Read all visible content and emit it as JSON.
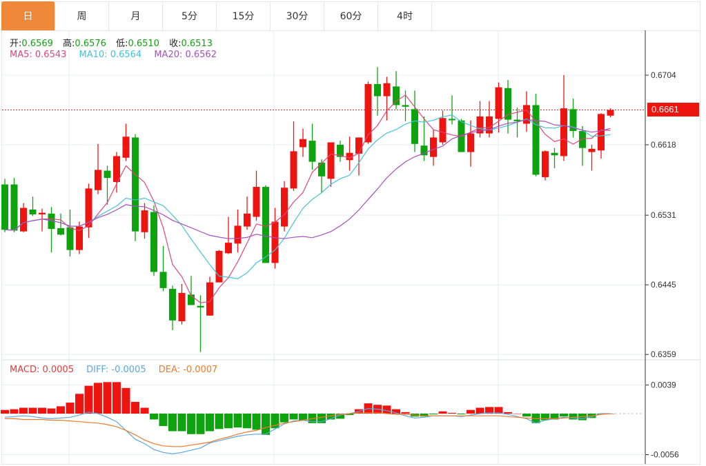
{
  "tabs": [
    {
      "label": "日",
      "active": true
    },
    {
      "label": "周"
    },
    {
      "label": "月"
    },
    {
      "label": "5分"
    },
    {
      "label": "15分"
    },
    {
      "label": "30分"
    },
    {
      "label": "60分"
    },
    {
      "label": "4时"
    }
  ],
  "ohlc_legend": {
    "open_label": "开:",
    "open": "0.6569",
    "high_label": "高:",
    "high": "0.6576",
    "low_label": "低:",
    "low": "0.6510",
    "close_label": "收:",
    "close": "0.6513"
  },
  "ma_legend": {
    "ma5": "MA5: 0.6543",
    "ma10": "MA10: 0.6564",
    "ma20": "MA20: 0.6562"
  },
  "macd_legend": {
    "macd": "MACD: 0.0005",
    "diff": "DIFF: -0.0005",
    "dea": "DEA: -0.0007"
  },
  "colors": {
    "up": "#ee1510",
    "down": "#0ea30e",
    "ma5": "#e0457b",
    "ma10": "#45c1d6",
    "ma20": "#a64dbf",
    "diff": "#5aa6e0",
    "dea": "#ee7a2a",
    "accent": "#f0883a"
  },
  "chart_data": [
    {
      "type": "candlestick",
      "title": "",
      "price_ticks": [
        "0.6704",
        "0.6618",
        "0.6531",
        "0.6445",
        "0.6359"
      ],
      "ylim": [
        0.6359,
        0.6704
      ],
      "current_price": "0.6661",
      "candles_ohlc_order": "open,close,high,low",
      "candles": [
        [
          0.6569,
          0.6513,
          0.6576,
          0.651
        ],
        [
          0.6569,
          0.6512,
          0.6577,
          0.651
        ],
        [
          0.6511,
          0.654,
          0.6546,
          0.651
        ],
        [
          0.6538,
          0.6532,
          0.6554,
          0.653
        ],
        [
          0.6532,
          0.6534,
          0.6539,
          0.6511
        ],
        [
          0.6533,
          0.6514,
          0.6541,
          0.6485
        ],
        [
          0.6515,
          0.6507,
          0.6533,
          0.6506
        ],
        [
          0.6516,
          0.6488,
          0.6538,
          0.648
        ],
        [
          0.6488,
          0.6517,
          0.6523,
          0.6483
        ],
        [
          0.6516,
          0.6564,
          0.657,
          0.6503
        ],
        [
          0.6562,
          0.6587,
          0.6619,
          0.6557
        ],
        [
          0.6586,
          0.6577,
          0.6592,
          0.6544
        ],
        [
          0.6572,
          0.6604,
          0.6609,
          0.6559
        ],
        [
          0.6602,
          0.6628,
          0.6644,
          0.6598
        ],
        [
          0.6627,
          0.6511,
          0.6631,
          0.6499
        ],
        [
          0.651,
          0.6537,
          0.6546,
          0.6502
        ],
        [
          0.6535,
          0.6461,
          0.6543,
          0.6456
        ],
        [
          0.6461,
          0.6441,
          0.6493,
          0.6437
        ],
        [
          0.644,
          0.6401,
          0.6444,
          0.6389
        ],
        [
          0.64,
          0.6435,
          0.6446,
          0.6396
        ],
        [
          0.6433,
          0.642,
          0.6456,
          0.642
        ],
        [
          0.6419,
          0.6417,
          0.6432,
          0.6362
        ],
        [
          0.6407,
          0.6448,
          0.6455,
          0.6407
        ],
        [
          0.6448,
          0.6487,
          0.6488,
          0.6448
        ],
        [
          0.6484,
          0.6497,
          0.6529,
          0.6483
        ],
        [
          0.6496,
          0.6518,
          0.6538,
          0.6485
        ],
        [
          0.6517,
          0.6533,
          0.6554,
          0.6513
        ],
        [
          0.6529,
          0.6566,
          0.6586,
          0.6524
        ],
        [
          0.6566,
          0.6472,
          0.6568,
          0.6472
        ],
        [
          0.6472,
          0.6523,
          0.654,
          0.6465
        ],
        [
          0.6517,
          0.6565,
          0.6573,
          0.6511
        ],
        [
          0.6564,
          0.661,
          0.6647,
          0.6561
        ],
        [
          0.6615,
          0.6625,
          0.6638,
          0.6603
        ],
        [
          0.6623,
          0.6597,
          0.6644,
          0.6587
        ],
        [
          0.6596,
          0.6579,
          0.66,
          0.6559
        ],
        [
          0.6576,
          0.6621,
          0.6621,
          0.6566
        ],
        [
          0.6618,
          0.6603,
          0.6623,
          0.6597
        ],
        [
          0.6599,
          0.6608,
          0.6628,
          0.6586
        ],
        [
          0.6607,
          0.6627,
          0.6627,
          0.658
        ],
        [
          0.6621,
          0.6693,
          0.6696,
          0.6619
        ],
        [
          0.6693,
          0.6678,
          0.6714,
          0.6654
        ],
        [
          0.6678,
          0.6694,
          0.6702,
          0.6648
        ],
        [
          0.669,
          0.6667,
          0.6709,
          0.6662
        ],
        [
          0.6667,
          0.6665,
          0.6685,
          0.6647
        ],
        [
          0.6662,
          0.6619,
          0.6685,
          0.6609
        ],
        [
          0.6617,
          0.6605,
          0.6653,
          0.6598
        ],
        [
          0.6603,
          0.6627,
          0.6636,
          0.6592
        ],
        [
          0.6621,
          0.6651,
          0.666,
          0.6618
        ],
        [
          0.665,
          0.6649,
          0.6679,
          0.6643
        ],
        [
          0.6648,
          0.6609,
          0.665,
          0.6609
        ],
        [
          0.6609,
          0.6632,
          0.6648,
          0.6591
        ],
        [
          0.6632,
          0.6653,
          0.6672,
          0.6627
        ],
        [
          0.6632,
          0.6653,
          0.6672,
          0.6627
        ],
        [
          0.665,
          0.6689,
          0.6695,
          0.6633
        ],
        [
          0.6688,
          0.6649,
          0.6698,
          0.6632
        ],
        [
          0.6649,
          0.6647,
          0.6664,
          0.6627
        ],
        [
          0.6644,
          0.6667,
          0.6684,
          0.6634
        ],
        [
          0.6667,
          0.6581,
          0.6681,
          0.6579
        ],
        [
          0.6578,
          0.661,
          0.6611,
          0.6574
        ],
        [
          0.6608,
          0.6605,
          0.6614,
          0.6589
        ],
        [
          0.6604,
          0.6663,
          0.6704,
          0.6598
        ],
        [
          0.6662,
          0.6635,
          0.6675,
          0.6627
        ],
        [
          0.6635,
          0.6614,
          0.6641,
          0.6592
        ],
        [
          0.6609,
          0.6613,
          0.6618,
          0.6586
        ],
        [
          0.6611,
          0.6656,
          0.6657,
          0.6601
        ],
        [
          0.6654,
          0.6661,
          0.6663,
          0.6652
        ]
      ],
      "moving_averages": [
        5,
        10,
        20
      ]
    },
    {
      "type": "macd",
      "ticks": [
        "0.0039",
        "-0.0056"
      ],
      "ylim": [
        -0.0056,
        0.0039
      ],
      "macd": [
        0.0005,
        0.0006,
        0.0008,
        0.0008,
        0.0008,
        0.0007,
        0.001,
        0.0015,
        0.0027,
        0.0038,
        0.0042,
        0.0043,
        0.0043,
        0.0035,
        0.0016,
        0.0008,
        -0.0008,
        -0.0017,
        -0.0024,
        -0.0024,
        -0.0028,
        -0.0028,
        -0.0024,
        -0.0021,
        -0.002,
        -0.0019,
        -0.002,
        -0.0022,
        -0.0029,
        -0.002,
        -0.0012,
        -0.0008,
        -0.0009,
        -0.0013,
        -0.0013,
        -0.0008,
        -0.0007,
        -0.0002,
        0.0006,
        0.0014,
        0.0012,
        0.0011,
        0.0006,
        0.0002,
        -0.0004,
        -0.0004,
        -0.0001,
        0.0003,
        0.0001,
        -0.0001,
        0.0005,
        0.0008,
        0.0009,
        0.0009,
        0.0002,
        0.0,
        -0.0004,
        -0.0013,
        -0.0009,
        -0.0008,
        -0.0004,
        -0.0008,
        -0.0009,
        -0.0006,
        -0.0001,
        0.0
      ],
      "diff": [
        -0.0005,
        -0.0004,
        -0.0003,
        -0.0004,
        -0.0006,
        -0.0007,
        -0.0006,
        -0.0005,
        -0.0002,
        0.0002,
        0.0,
        -0.0005,
        -0.0011,
        -0.0023,
        -0.0035,
        -0.0041,
        -0.0049,
        -0.0053,
        -0.0055,
        -0.0053,
        -0.005,
        -0.0047,
        -0.004,
        -0.0037,
        -0.0034,
        -0.0031,
        -0.0029,
        -0.0028,
        -0.0028,
        -0.0021,
        -0.0014,
        -0.001,
        -0.0009,
        -0.0011,
        -0.0011,
        -0.0007,
        -0.0002,
        0.0,
        0.0003,
        0.0007,
        0.0006,
        0.0004,
        0.0001,
        -0.0003,
        -0.0006,
        -0.0005,
        -0.0003,
        -0.0003,
        -0.0003,
        -0.0004,
        -0.0002,
        0.0,
        0.0001,
        0.0001,
        -0.0001,
        -0.0004,
        -0.0007,
        -0.0013,
        -0.0009,
        -0.0007,
        -0.0005,
        -0.0006,
        -0.0007,
        -0.0004,
        0.0,
        0.0
      ],
      "dea": [
        -0.0007,
        -0.0007,
        -0.0008,
        -0.0008,
        -0.0008,
        -0.0009,
        -0.0009,
        -0.001,
        -0.0011,
        -0.0012,
        -0.0013,
        -0.0015,
        -0.0018,
        -0.0023,
        -0.0029,
        -0.0036,
        -0.0041,
        -0.0044,
        -0.0045,
        -0.0045,
        -0.0043,
        -0.0041,
        -0.0039,
        -0.0035,
        -0.0032,
        -0.0028,
        -0.0025,
        -0.0023,
        -0.0019,
        -0.0016,
        -0.0013,
        -0.0011,
        -0.0009,
        -0.0007,
        -0.0005,
        -0.0003,
        -0.0001,
        0.0,
        0.0001,
        0.0001,
        0.0001,
        0.0,
        -0.0001,
        -0.0001,
        -0.0002,
        -0.0003,
        -0.0003,
        -0.0003,
        -0.0003,
        -0.0003,
        -0.0003,
        -0.0003,
        -0.0003,
        -0.0003,
        -0.0004,
        -0.0005,
        -0.0006,
        -0.0007,
        -0.0007,
        -0.0007,
        -0.0006,
        -0.0005,
        -0.0004,
        -0.0003,
        -0.0001,
        0.0
      ]
    }
  ]
}
